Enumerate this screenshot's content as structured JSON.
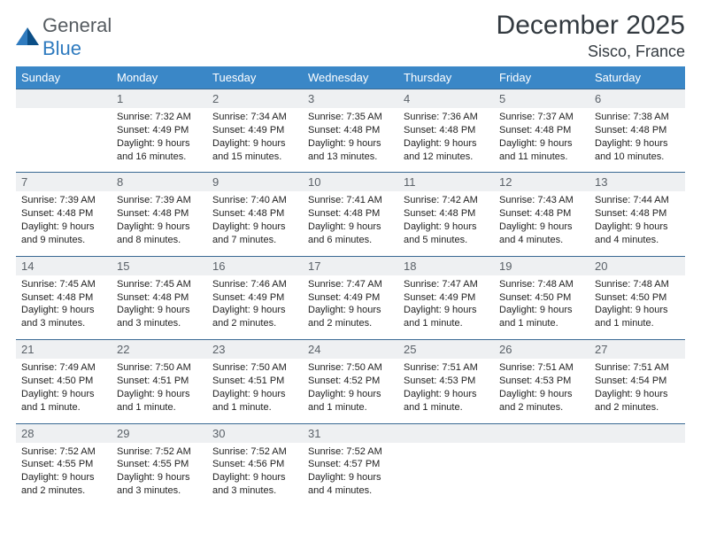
{
  "brand": {
    "line1": "General",
    "line2": "Blue"
  },
  "title": "December 2025",
  "location": "Sisco, France",
  "colors": {
    "header_bg": "#3a87c7",
    "header_text": "#ffffff",
    "daynum_bg": "#eef0f2",
    "daynum_text": "#5a6168",
    "rule": "#3a6a94",
    "brand_blue": "#2f7bbf",
    "brand_gray": "#555b60"
  },
  "weekdays": [
    "Sunday",
    "Monday",
    "Tuesday",
    "Wednesday",
    "Thursday",
    "Friday",
    "Saturday"
  ],
  "weeks": [
    [
      {
        "n": "",
        "sr": "",
        "ss": "",
        "dl": ""
      },
      {
        "n": "1",
        "sr": "Sunrise: 7:32 AM",
        "ss": "Sunset: 4:49 PM",
        "dl": "Daylight: 9 hours and 16 minutes."
      },
      {
        "n": "2",
        "sr": "Sunrise: 7:34 AM",
        "ss": "Sunset: 4:49 PM",
        "dl": "Daylight: 9 hours and 15 minutes."
      },
      {
        "n": "3",
        "sr": "Sunrise: 7:35 AM",
        "ss": "Sunset: 4:48 PM",
        "dl": "Daylight: 9 hours and 13 minutes."
      },
      {
        "n": "4",
        "sr": "Sunrise: 7:36 AM",
        "ss": "Sunset: 4:48 PM",
        "dl": "Daylight: 9 hours and 12 minutes."
      },
      {
        "n": "5",
        "sr": "Sunrise: 7:37 AM",
        "ss": "Sunset: 4:48 PM",
        "dl": "Daylight: 9 hours and 11 minutes."
      },
      {
        "n": "6",
        "sr": "Sunrise: 7:38 AM",
        "ss": "Sunset: 4:48 PM",
        "dl": "Daylight: 9 hours and 10 minutes."
      }
    ],
    [
      {
        "n": "7",
        "sr": "Sunrise: 7:39 AM",
        "ss": "Sunset: 4:48 PM",
        "dl": "Daylight: 9 hours and 9 minutes."
      },
      {
        "n": "8",
        "sr": "Sunrise: 7:39 AM",
        "ss": "Sunset: 4:48 PM",
        "dl": "Daylight: 9 hours and 8 minutes."
      },
      {
        "n": "9",
        "sr": "Sunrise: 7:40 AM",
        "ss": "Sunset: 4:48 PM",
        "dl": "Daylight: 9 hours and 7 minutes."
      },
      {
        "n": "10",
        "sr": "Sunrise: 7:41 AM",
        "ss": "Sunset: 4:48 PM",
        "dl": "Daylight: 9 hours and 6 minutes."
      },
      {
        "n": "11",
        "sr": "Sunrise: 7:42 AM",
        "ss": "Sunset: 4:48 PM",
        "dl": "Daylight: 9 hours and 5 minutes."
      },
      {
        "n": "12",
        "sr": "Sunrise: 7:43 AM",
        "ss": "Sunset: 4:48 PM",
        "dl": "Daylight: 9 hours and 4 minutes."
      },
      {
        "n": "13",
        "sr": "Sunrise: 7:44 AM",
        "ss": "Sunset: 4:48 PM",
        "dl": "Daylight: 9 hours and 4 minutes."
      }
    ],
    [
      {
        "n": "14",
        "sr": "Sunrise: 7:45 AM",
        "ss": "Sunset: 4:48 PM",
        "dl": "Daylight: 9 hours and 3 minutes."
      },
      {
        "n": "15",
        "sr": "Sunrise: 7:45 AM",
        "ss": "Sunset: 4:48 PM",
        "dl": "Daylight: 9 hours and 3 minutes."
      },
      {
        "n": "16",
        "sr": "Sunrise: 7:46 AM",
        "ss": "Sunset: 4:49 PM",
        "dl": "Daylight: 9 hours and 2 minutes."
      },
      {
        "n": "17",
        "sr": "Sunrise: 7:47 AM",
        "ss": "Sunset: 4:49 PM",
        "dl": "Daylight: 9 hours and 2 minutes."
      },
      {
        "n": "18",
        "sr": "Sunrise: 7:47 AM",
        "ss": "Sunset: 4:49 PM",
        "dl": "Daylight: 9 hours and 1 minute."
      },
      {
        "n": "19",
        "sr": "Sunrise: 7:48 AM",
        "ss": "Sunset: 4:50 PM",
        "dl": "Daylight: 9 hours and 1 minute."
      },
      {
        "n": "20",
        "sr": "Sunrise: 7:48 AM",
        "ss": "Sunset: 4:50 PM",
        "dl": "Daylight: 9 hours and 1 minute."
      }
    ],
    [
      {
        "n": "21",
        "sr": "Sunrise: 7:49 AM",
        "ss": "Sunset: 4:50 PM",
        "dl": "Daylight: 9 hours and 1 minute."
      },
      {
        "n": "22",
        "sr": "Sunrise: 7:50 AM",
        "ss": "Sunset: 4:51 PM",
        "dl": "Daylight: 9 hours and 1 minute."
      },
      {
        "n": "23",
        "sr": "Sunrise: 7:50 AM",
        "ss": "Sunset: 4:51 PM",
        "dl": "Daylight: 9 hours and 1 minute."
      },
      {
        "n": "24",
        "sr": "Sunrise: 7:50 AM",
        "ss": "Sunset: 4:52 PM",
        "dl": "Daylight: 9 hours and 1 minute."
      },
      {
        "n": "25",
        "sr": "Sunrise: 7:51 AM",
        "ss": "Sunset: 4:53 PM",
        "dl": "Daylight: 9 hours and 1 minute."
      },
      {
        "n": "26",
        "sr": "Sunrise: 7:51 AM",
        "ss": "Sunset: 4:53 PM",
        "dl": "Daylight: 9 hours and 2 minutes."
      },
      {
        "n": "27",
        "sr": "Sunrise: 7:51 AM",
        "ss": "Sunset: 4:54 PM",
        "dl": "Daylight: 9 hours and 2 minutes."
      }
    ],
    [
      {
        "n": "28",
        "sr": "Sunrise: 7:52 AM",
        "ss": "Sunset: 4:55 PM",
        "dl": "Daylight: 9 hours and 2 minutes."
      },
      {
        "n": "29",
        "sr": "Sunrise: 7:52 AM",
        "ss": "Sunset: 4:55 PM",
        "dl": "Daylight: 9 hours and 3 minutes."
      },
      {
        "n": "30",
        "sr": "Sunrise: 7:52 AM",
        "ss": "Sunset: 4:56 PM",
        "dl": "Daylight: 9 hours and 3 minutes."
      },
      {
        "n": "31",
        "sr": "Sunrise: 7:52 AM",
        "ss": "Sunset: 4:57 PM",
        "dl": "Daylight: 9 hours and 4 minutes."
      },
      {
        "n": "",
        "sr": "",
        "ss": "",
        "dl": ""
      },
      {
        "n": "",
        "sr": "",
        "ss": "",
        "dl": ""
      },
      {
        "n": "",
        "sr": "",
        "ss": "",
        "dl": ""
      }
    ]
  ]
}
